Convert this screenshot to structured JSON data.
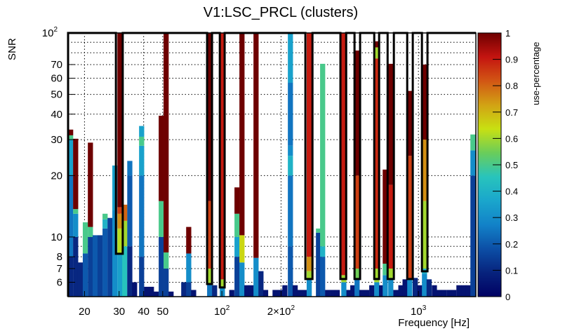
{
  "chart_data": {
    "type": "heatmap",
    "title": "V1:LSC_PRCL (clusters)",
    "xlabel": "Frequency [Hz]",
    "ylabel": "SNR",
    "zlabel": "use-percentage",
    "xscale": "log",
    "yscale": "log",
    "xlim": [
      16.5,
      1960
    ],
    "ylim": [
      5.1,
      100
    ],
    "zlim": [
      0,
      1
    ],
    "grid": true,
    "x_ticks": [
      {
        "value": 20,
        "label": "20"
      },
      {
        "value": 30,
        "label": "30"
      },
      {
        "value": 40,
        "label": "40"
      },
      {
        "value": 50,
        "label": "50"
      },
      {
        "value": 100,
        "label": "10",
        "sup": "2"
      },
      {
        "value": 200,
        "label": "2×10",
        "sup": "2"
      },
      {
        "value": 1000,
        "label": "10",
        "sup": "3"
      }
    ],
    "y_ticks": [
      {
        "value": 6,
        "label": "6"
      },
      {
        "value": 7,
        "label": "7"
      },
      {
        "value": 8,
        "label": "8"
      },
      {
        "value": 10,
        "label": "10"
      },
      {
        "value": 20,
        "label": "20"
      },
      {
        "value": 30,
        "label": "30"
      },
      {
        "value": 40,
        "label": "40"
      },
      {
        "value": 50,
        "label": "50"
      },
      {
        "value": 60,
        "label": "60"
      },
      {
        "value": 70,
        "label": "70"
      },
      {
        "value": 100,
        "label": "10",
        "sup": "2"
      }
    ],
    "z_ticks": [
      "0",
      "0.1",
      "0.2",
      "0.3",
      "0.4",
      "0.5",
      "0.6",
      "0.7",
      "0.8",
      "0.9",
      "1"
    ],
    "colormap": [
      "#000063",
      "#07237d",
      "#0c4fa6",
      "#1282c8",
      "#1aa6cc",
      "#28c4bc",
      "#6acd5a",
      "#c8e012",
      "#d2a214",
      "#d25614",
      "#c41410",
      "#6e0000"
    ],
    "bin_log_width_decades": 0.025,
    "columns": [
      {
        "f": 16.5,
        "cells": [
          [
            5.1,
            8,
            0.1
          ],
          [
            8,
            20,
            0.25
          ],
          [
            20,
            30,
            0.35
          ],
          [
            30,
            31.5,
            0.5
          ],
          [
            31.5,
            33.6,
            1.0
          ]
        ]
      },
      {
        "f": 17.5,
        "cells": [
          [
            5.1,
            10,
            0.1
          ],
          [
            10,
            13,
            0.3
          ],
          [
            13,
            13.7,
            0.5
          ],
          [
            13.7,
            30.3,
            1.0
          ]
        ]
      },
      {
        "f": 18.5,
        "cells": [
          [
            5.1,
            7.5,
            0.1
          ]
        ]
      },
      {
        "f": 19.6,
        "cells": [
          [
            5.1,
            8.3,
            0.2
          ],
          [
            8.3,
            11.8,
            0.5
          ]
        ]
      },
      {
        "f": 20.8,
        "cells": [
          [
            5.1,
            10,
            0.15
          ],
          [
            10,
            11.2,
            0.5
          ],
          [
            11.2,
            29,
            1.0
          ]
        ]
      },
      {
        "f": 22.0,
        "cells": [
          [
            5.1,
            10.2,
            0.2
          ]
        ]
      },
      {
        "f": 23.3,
        "cells": [
          [
            5.1,
            10.2,
            0.15
          ]
        ]
      },
      {
        "f": 24.7,
        "cells": [
          [
            5.1,
            11,
            0.2
          ],
          [
            11,
            12.2,
            0.4
          ],
          [
            12.2,
            13,
            0.5
          ]
        ]
      },
      {
        "f": 26.2,
        "cells": [
          [
            5.1,
            12.4,
            0.15
          ]
        ]
      },
      {
        "f": 27.7,
        "cells": [
          [
            5.1,
            13.5,
            0.3
          ],
          [
            13.5,
            22.4,
            0.35
          ]
        ]
      },
      {
        "f": 29.4,
        "cells": [
          [
            5.1,
            8.3,
            0.35
          ],
          [
            8.3,
            11,
            0.62
          ],
          [
            11,
            13,
            0.75
          ],
          [
            13,
            14,
            0.85
          ],
          [
            14,
            100,
            1.0
          ]
        ]
      },
      {
        "f": 31.1,
        "cells": [
          [
            5.1,
            9,
            0.45
          ],
          [
            9,
            12,
            0.6
          ],
          [
            12,
            14.4,
            0.8
          ]
        ]
      },
      {
        "f": 33.0,
        "cells": [
          [
            5.1,
            9,
            0.1
          ],
          [
            9,
            20,
            0.2
          ],
          [
            20,
            23.6,
            0.25
          ]
        ]
      },
      {
        "f": 34.9,
        "cells": [
          [
            5.1,
            6,
            0.05
          ]
        ]
      },
      {
        "f": 37.9,
        "cells": [
          [
            5.1,
            8,
            0.15
          ],
          [
            8,
            20,
            0.25
          ],
          [
            20,
            28,
            0.35
          ],
          [
            28,
            31,
            0.5
          ],
          [
            31,
            35,
            0.35
          ]
        ]
      },
      {
        "f": 40.2,
        "cells": [
          [
            5.1,
            5.7,
            0.05
          ]
        ]
      },
      {
        "f": 42.5,
        "cells": [
          [
            5.1,
            5.7,
            0.05
          ]
        ]
      },
      {
        "f": 45.0,
        "cells": [
          [
            5.1,
            5.4,
            0.05
          ]
        ]
      },
      {
        "f": 47.7,
        "cells": [
          [
            5.1,
            10,
            0.15
          ],
          [
            10,
            15,
            0.5
          ],
          [
            15,
            39.3,
            1.0
          ]
        ]
      },
      {
        "f": 50.5,
        "cells": [
          [
            5.1,
            7,
            0.15
          ],
          [
            7,
            8.4,
            0.5
          ],
          [
            8.4,
            100,
            1.0
          ]
        ]
      },
      {
        "f": 53.5,
        "cells": [
          [
            5.1,
            5.4,
            0.05
          ]
        ]
      },
      {
        "f": 62.1,
        "cells": [
          [
            5.1,
            6,
            0.1
          ]
        ]
      },
      {
        "f": 65.8,
        "cells": [
          [
            5.1,
            6,
            0.15
          ],
          [
            6,
            8.3,
            0.3
          ],
          [
            8.3,
            11.2,
            1.0
          ]
        ]
      },
      {
        "f": 69.7,
        "cells": [
          [
            5.1,
            5.5,
            0.05
          ]
        ]
      },
      {
        "f": 84.1,
        "cells": [
          [
            5.1,
            5.9,
            0.25
          ],
          [
            5.9,
            7,
            0.6
          ],
          [
            7,
            15,
            0.85
          ],
          [
            15,
            100,
            1.0
          ]
        ]
      },
      {
        "f": 89.1,
        "cells": [
          [
            5.1,
            5.8,
            0.1
          ]
        ]
      },
      {
        "f": 97.6,
        "cells": [
          [
            5.1,
            5.7,
            0.3
          ],
          [
            5.7,
            6.2,
            0.6
          ],
          [
            6.2,
            100,
            0.9
          ]
        ]
      },
      {
        "f": 109,
        "cells": [
          [
            5.1,
            5.5,
            0.05
          ]
        ]
      },
      {
        "f": 115.9,
        "cells": [
          [
            5.1,
            8,
            0.15
          ],
          [
            8,
            10,
            0.35
          ],
          [
            10,
            13,
            0.5
          ],
          [
            13,
            17.5,
            1.0
          ]
        ]
      },
      {
        "f": 122.8,
        "cells": [
          [
            5.1,
            7.5,
            0.3
          ],
          [
            7.5,
            10.2,
            0.65
          ],
          [
            10.2,
            100,
            1.0
          ]
        ]
      },
      {
        "f": 130,
        "cells": [
          [
            5.1,
            5.8,
            0.05
          ]
        ]
      },
      {
        "f": 137,
        "cells": [
          [
            5.1,
            5.8,
            0.05
          ]
        ]
      },
      {
        "f": 144.8,
        "cells": [
          [
            5.1,
            7.9,
            0.3
          ],
          [
            7.9,
            100,
            1.0
          ]
        ]
      },
      {
        "f": 153.4,
        "cells": [
          [
            5.1,
            6.8,
            0.1
          ]
        ]
      },
      {
        "f": 162,
        "cells": [
          [
            5.1,
            5.5,
            0.05
          ]
        ]
      },
      {
        "f": 181,
        "cells": [
          [
            5.1,
            5.5,
            0.05
          ]
        ]
      },
      {
        "f": 192,
        "cells": [
          [
            5.1,
            5.5,
            0.05
          ]
        ]
      },
      {
        "f": 203,
        "cells": [
          [
            5.1,
            5.8,
            0.05
          ]
        ]
      },
      {
        "f": 216.6,
        "cells": [
          [
            5.1,
            9,
            0.2
          ],
          [
            9,
            20,
            0.25
          ],
          [
            20,
            25,
            0.4
          ],
          [
            25,
            28,
            0.3
          ],
          [
            28,
            57,
            0.25
          ],
          [
            57,
            100,
            0.35
          ]
        ]
      },
      {
        "f": 229,
        "cells": [
          [
            5.1,
            5.8,
            0.05
          ]
        ]
      },
      {
        "f": 242,
        "cells": [
          [
            5.1,
            5.5,
            0.05
          ]
        ]
      },
      {
        "f": 256,
        "cells": [
          [
            5.1,
            5.5,
            0.05
          ]
        ]
      },
      {
        "f": 270,
        "cells": [
          [
            5.1,
            6.2,
            0.3
          ],
          [
            6.2,
            6.8,
            0.6
          ],
          [
            6.8,
            8,
            0.75
          ],
          [
            8,
            100,
            0.9
          ]
        ]
      },
      {
        "f": 301,
        "cells": [
          [
            5.1,
            10.5,
            0.15
          ],
          [
            10.5,
            11,
            0.5
          ]
        ]
      },
      {
        "f": 316,
        "cells": [
          [
            5.1,
            8,
            0.2
          ],
          [
            8,
            9,
            0.4
          ],
          [
            9,
            70.6,
            0.5
          ]
        ]
      },
      {
        "f": 335,
        "cells": [
          [
            5.1,
            5.5,
            0.05
          ]
        ]
      },
      {
        "f": 355,
        "cells": [
          [
            5.1,
            5.5,
            0.05
          ]
        ]
      },
      {
        "f": 375,
        "cells": [
          [
            5.1,
            5.5,
            0.05
          ]
        ]
      },
      {
        "f": 405,
        "cells": [
          [
            5.1,
            6,
            0.3
          ],
          [
            6,
            6.5,
            0.6
          ],
          [
            6.5,
            100,
            0.9
          ]
        ]
      },
      {
        "f": 430,
        "cells": [
          [
            5.1,
            5.5,
            0.05
          ]
        ]
      },
      {
        "f": 450,
        "cells": [
          [
            5.1,
            5.8,
            0.05
          ]
        ]
      },
      {
        "f": 473,
        "cells": [
          [
            5.1,
            6.2,
            0.25
          ],
          [
            6.2,
            7,
            0.55
          ],
          [
            7,
            20,
            0.85
          ],
          [
            20,
            82,
            1.0
          ]
        ]
      },
      {
        "f": 500,
        "cells": [
          [
            5.1,
            5.5,
            0.05
          ]
        ]
      },
      {
        "f": 530,
        "cells": [
          [
            5.1,
            5.5,
            0.05
          ]
        ]
      },
      {
        "f": 562,
        "cells": [
          [
            5.1,
            5.8,
            0.05
          ]
        ]
      },
      {
        "f": 596,
        "cells": [
          [
            5.1,
            6,
            0.3
          ],
          [
            6,
            7,
            0.6
          ],
          [
            7,
            75,
            0.88
          ],
          [
            75,
            85,
            0.6
          ],
          [
            85,
            91,
            1.0
          ]
        ]
      },
      {
        "f": 630,
        "cells": [
          [
            5.1,
            5.8,
            0.05
          ]
        ]
      },
      {
        "f": 658,
        "cells": [
          [
            5.1,
            6.5,
            0.3
          ],
          [
            6.5,
            7.4,
            0.5
          ],
          [
            7.4,
            21.4,
            1.0
          ]
        ]
      },
      {
        "f": 702,
        "cells": [
          [
            5.1,
            6.3,
            0.3
          ],
          [
            6.3,
            7,
            0.6
          ],
          [
            7,
            18,
            0.9
          ],
          [
            18,
            70.6,
            1.0
          ]
        ]
      },
      {
        "f": 745,
        "cells": [
          [
            5.1,
            5.5,
            0.05
          ]
        ]
      },
      {
        "f": 790,
        "cells": [
          [
            5.1,
            5.8,
            0.05
          ]
        ]
      },
      {
        "f": 830,
        "cells": [
          [
            5.1,
            6.2,
            0.05
          ]
        ]
      },
      {
        "f": 877,
        "cells": [
          [
            5.1,
            6.2,
            0.3
          ],
          [
            6.2,
            25,
            0.85
          ],
          [
            25,
            52,
            1.0
          ]
        ]
      },
      {
        "f": 935,
        "cells": [
          [
            5.1,
            6.3,
            0.1
          ]
        ]
      },
      {
        "f": 985,
        "cells": [
          [
            5.1,
            5.8,
            0.05
          ]
        ]
      },
      {
        "f": 1042,
        "cells": [
          [
            5.1,
            6.6,
            0.3
          ],
          [
            6.6,
            7,
            0.4
          ],
          [
            7,
            15,
            0.6
          ],
          [
            15,
            30,
            0.75
          ],
          [
            30,
            70,
            1.0
          ]
        ]
      },
      {
        "f": 1100,
        "cells": [
          [
            5.1,
            6.2,
            0.1
          ]
        ]
      },
      {
        "f": 1170,
        "cells": [
          [
            5.1,
            5.8,
            0.05
          ]
        ]
      },
      {
        "f": 1240,
        "cells": [
          [
            5.1,
            5.5,
            0.05
          ]
        ]
      },
      {
        "f": 1310,
        "cells": [
          [
            5.1,
            5.5,
            0.05
          ]
        ]
      },
      {
        "f": 1390,
        "cells": [
          [
            5.1,
            5.5,
            0.05
          ]
        ]
      },
      {
        "f": 1470,
        "cells": [
          [
            5.1,
            5.5,
            0.05
          ]
        ]
      },
      {
        "f": 1560,
        "cells": [
          [
            5.1,
            5.8,
            0.05
          ]
        ]
      },
      {
        "f": 1650,
        "cells": [
          [
            5.1,
            5.8,
            0.05
          ]
        ]
      },
      {
        "f": 1740,
        "cells": [
          [
            5.1,
            5.8,
            0.05
          ]
        ]
      },
      {
        "f": 1838,
        "cells": [
          [
            5.1,
            20,
            0.15
          ],
          [
            20,
            26.6,
            0.3
          ],
          [
            26.6,
            31.8,
            0.5
          ]
        ]
      }
    ],
    "contour_dips": [
      {
        "f": [
          28.9,
          31.3
        ],
        "snr": 8.27
      },
      {
        "f": [
          84.1,
          89.1
        ],
        "snr": 5.88
      },
      {
        "f": [
          97.6,
          103.3
        ],
        "snr": 5.66
      },
      {
        "f": [
          266,
          289
        ],
        "snr": 6.22
      },
      {
        "f": [
          401,
          429
        ],
        "snr": 6.22
      },
      {
        "f": [
          473,
          505
        ],
        "snr": 6.22
      },
      {
        "f": [
          596,
          631
        ],
        "snr": 6.22
      },
      {
        "f": [
          697,
          750
        ],
        "snr": 6.22
      },
      {
        "f": [
          877,
          936
        ],
        "snr": 6.22
      },
      {
        "f": [
          1042,
          1112
        ],
        "snr": 6.79
      }
    ]
  }
}
